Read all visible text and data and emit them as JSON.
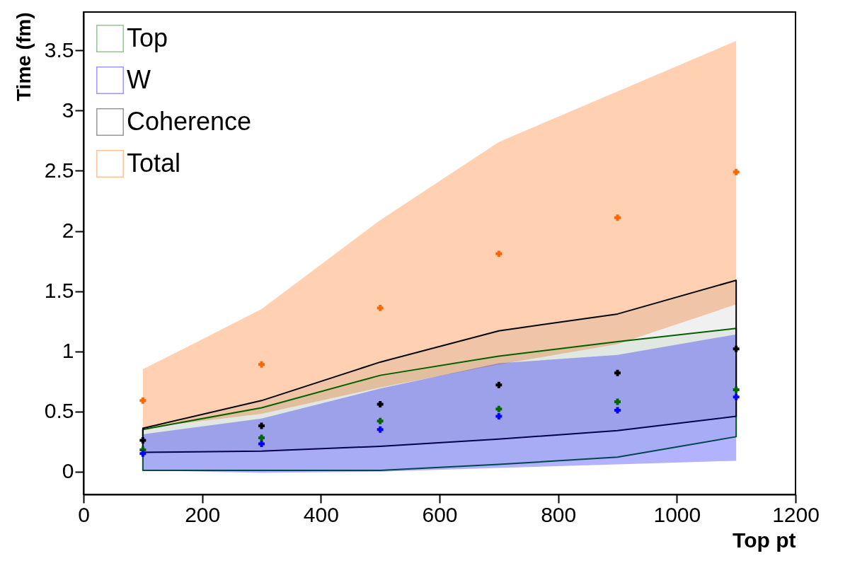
{
  "chart_data": {
    "type": "scatter",
    "xlabel": "Top pt",
    "ylabel": "Time (fm)",
    "x": [
      100,
      300,
      500,
      700,
      900,
      1100
    ],
    "series": [
      {
        "name": "Top",
        "color": "#006600",
        "values": [
          0.18,
          0.28,
          0.42,
          0.52,
          0.58,
          0.68
        ],
        "lower": [
          0.01,
          0.01,
          0.01,
          0.06,
          0.12,
          0.29
        ],
        "upper": [
          0.35,
          0.53,
          0.8,
          0.96,
          1.08,
          1.19
        ]
      },
      {
        "name": "W",
        "color": "#0000ff",
        "values": [
          0.15,
          0.23,
          0.35,
          0.46,
          0.51,
          0.62
        ],
        "lower": [
          0.01,
          -0.01,
          0.0,
          0.03,
          0.06,
          0.09
        ],
        "upper": [
          0.31,
          0.44,
          0.69,
          0.9,
          0.97,
          1.14
        ]
      },
      {
        "name": "Coherence",
        "color": "#000000",
        "values": [
          0.26,
          0.38,
          0.56,
          0.72,
          0.82,
          1.02
        ],
        "lower": [
          0.16,
          0.17,
          0.21,
          0.27,
          0.34,
          0.46
        ],
        "upper": [
          0.36,
          0.59,
          0.91,
          1.17,
          1.31,
          1.59
        ]
      },
      {
        "name": "Total",
        "color": "#ff6600",
        "values": [
          0.59,
          0.89,
          1.36,
          1.81,
          2.11,
          2.49
        ],
        "lower": [
          0.36,
          0.48,
          0.7,
          0.89,
          1.06,
          1.39
        ],
        "upper": [
          0.85,
          1.35,
          2.09,
          2.74,
          3.16,
          3.58
        ]
      }
    ],
    "xlim": [
      0,
      1200
    ],
    "ylim": [
      -0.19,
      3.82
    ],
    "xticks": [
      0,
      200,
      400,
      600,
      800,
      1000,
      1200
    ],
    "yticks": [
      0,
      0.5,
      1,
      1.5,
      2,
      2.5,
      3,
      3.5
    ],
    "marker": "cross",
    "legend": "top left",
    "grid": false
  }
}
